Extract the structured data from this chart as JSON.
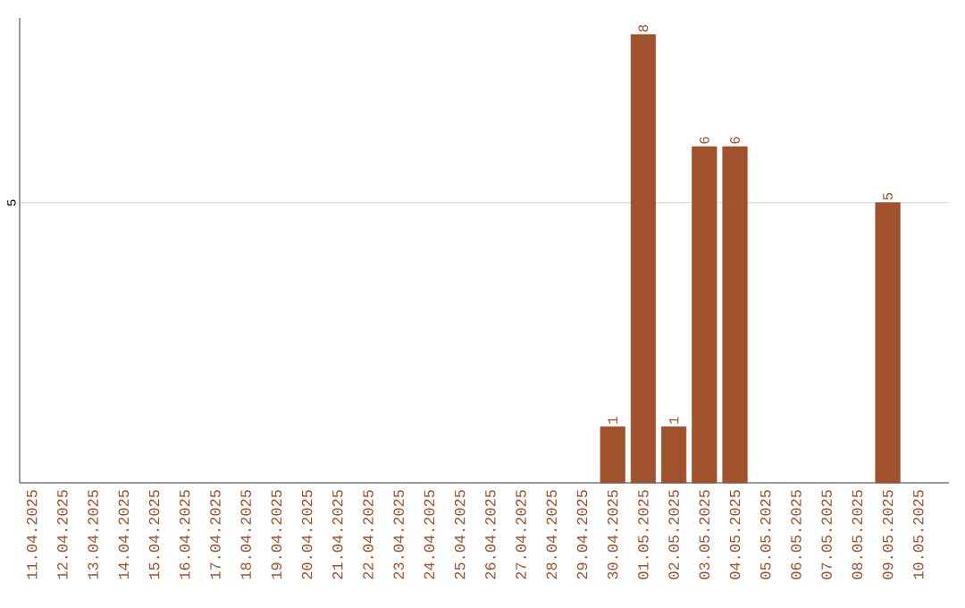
{
  "chart_data": {
    "type": "bar",
    "categories": [
      "11.04.2025",
      "12.04.2025",
      "13.04.2025",
      "14.04.2025",
      "15.04.2025",
      "16.04.2025",
      "17.04.2025",
      "18.04.2025",
      "19.04.2025",
      "20.04.2025",
      "21.04.2025",
      "22.04.2025",
      "23.04.2025",
      "24.04.2025",
      "25.04.2025",
      "26.04.2025",
      "27.04.2025",
      "28.04.2025",
      "29.04.2025",
      "30.04.2025",
      "01.05.2025",
      "02.05.2025",
      "03.05.2025",
      "04.05.2025",
      "05.05.2025",
      "06.05.2025",
      "07.05.2025",
      "08.05.2025",
      "09.05.2025",
      "10.05.2025"
    ],
    "values": [
      null,
      null,
      null,
      null,
      null,
      null,
      null,
      null,
      null,
      null,
      null,
      null,
      null,
      null,
      null,
      null,
      null,
      null,
      null,
      1,
      8,
      1,
      6,
      6,
      null,
      null,
      null,
      null,
      5,
      null
    ],
    "data_labels": true,
    "color": "#a0522d",
    "ylim": [
      0,
      8.3
    ],
    "ref_lines": [
      {
        "axis": "y",
        "value": 5,
        "label": "5",
        "color": "#cccccc"
      }
    ]
  }
}
